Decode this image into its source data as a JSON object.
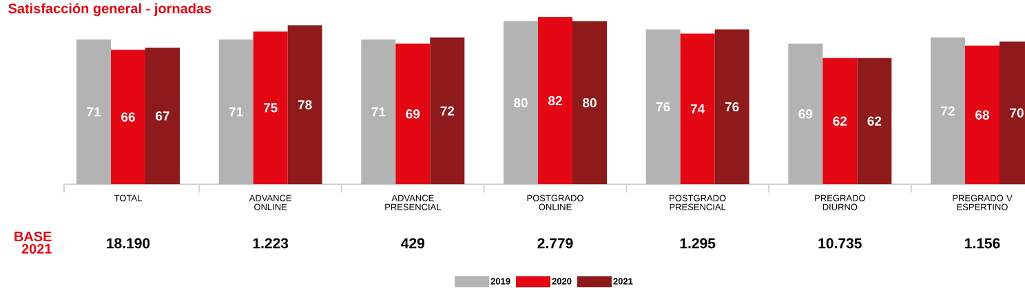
{
  "chart_data": {
    "type": "bar",
    "title": "Satisfacción general - jornadas",
    "categories": [
      "TOTAL",
      "ADVANCE ONLINE",
      "ADVANCE PRESENCIAL",
      "POSTGRADO ONLINE",
      "POSTGRADO PRESENCIAL",
      "PREGRADO DIURNO",
      "PREGRADO V ESPERTINO"
    ],
    "series": [
      {
        "name": "2019",
        "color": "#b3b3b3",
        "values": [
          71,
          71,
          71,
          80,
          76,
          69,
          72
        ]
      },
      {
        "name": "2020",
        "color": "#e30613",
        "values": [
          66,
          75,
          69,
          82,
          74,
          62,
          68
        ]
      },
      {
        "name": "2021",
        "color": "#8e1a1b",
        "values": [
          67,
          78,
          72,
          80,
          76,
          62,
          70
        ]
      }
    ],
    "tick_labels": "x",
    "data_labels": true,
    "legend": "bottom",
    "annotations": [
      "BASE 2021",
      "18.190",
      "1.223",
      "429",
      "2.779",
      "1.295",
      "10.735",
      "1.156"
    ]
  }
}
